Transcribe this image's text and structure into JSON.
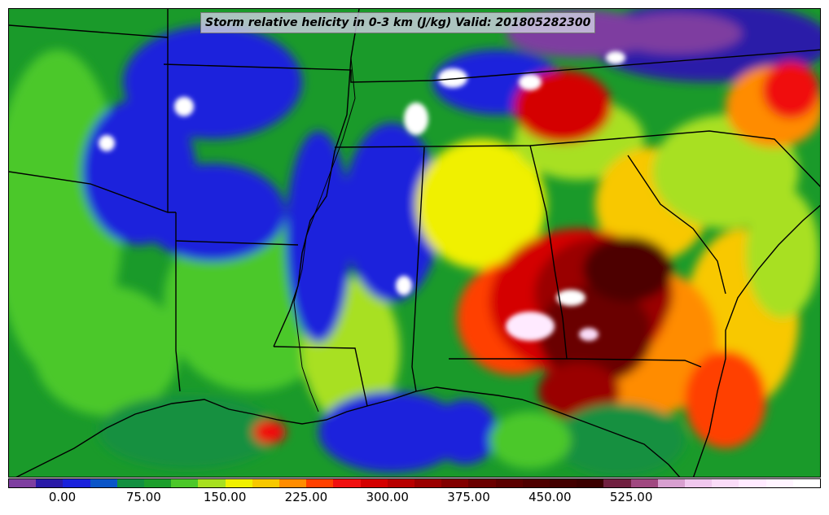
{
  "title": "Storm relative helicity in 0-3 km (J/kg) Valid: 201805282300",
  "colorbar": {
    "colors": [
      "#7e3ea0",
      "#2a1aa8",
      "#1a22dc",
      "#0a55c8",
      "#129040",
      "#1c9e2c",
      "#4cc82a",
      "#a8e020",
      "#f0f000",
      "#f8c800",
      "#ff8c00",
      "#ff4000",
      "#f01010",
      "#d40000",
      "#b80000",
      "#9a0000",
      "#820000",
      "#6a0000",
      "#5a0000",
      "#4e0000",
      "#420000",
      "#3a0000",
      "#702040",
      "#a04880",
      "#d8a0d0",
      "#f0c8ee",
      "#fadcf8",
      "#ffeaff",
      "#fff4ff",
      "#ffffff"
    ],
    "tick_labels": [
      "0.00",
      "75.00",
      "150.00",
      "225.00",
      "300.00",
      "375.00",
      "450.00",
      "525.00"
    ],
    "tick_positions": [
      2,
      5,
      8,
      11,
      14,
      17,
      20,
      23
    ]
  }
}
